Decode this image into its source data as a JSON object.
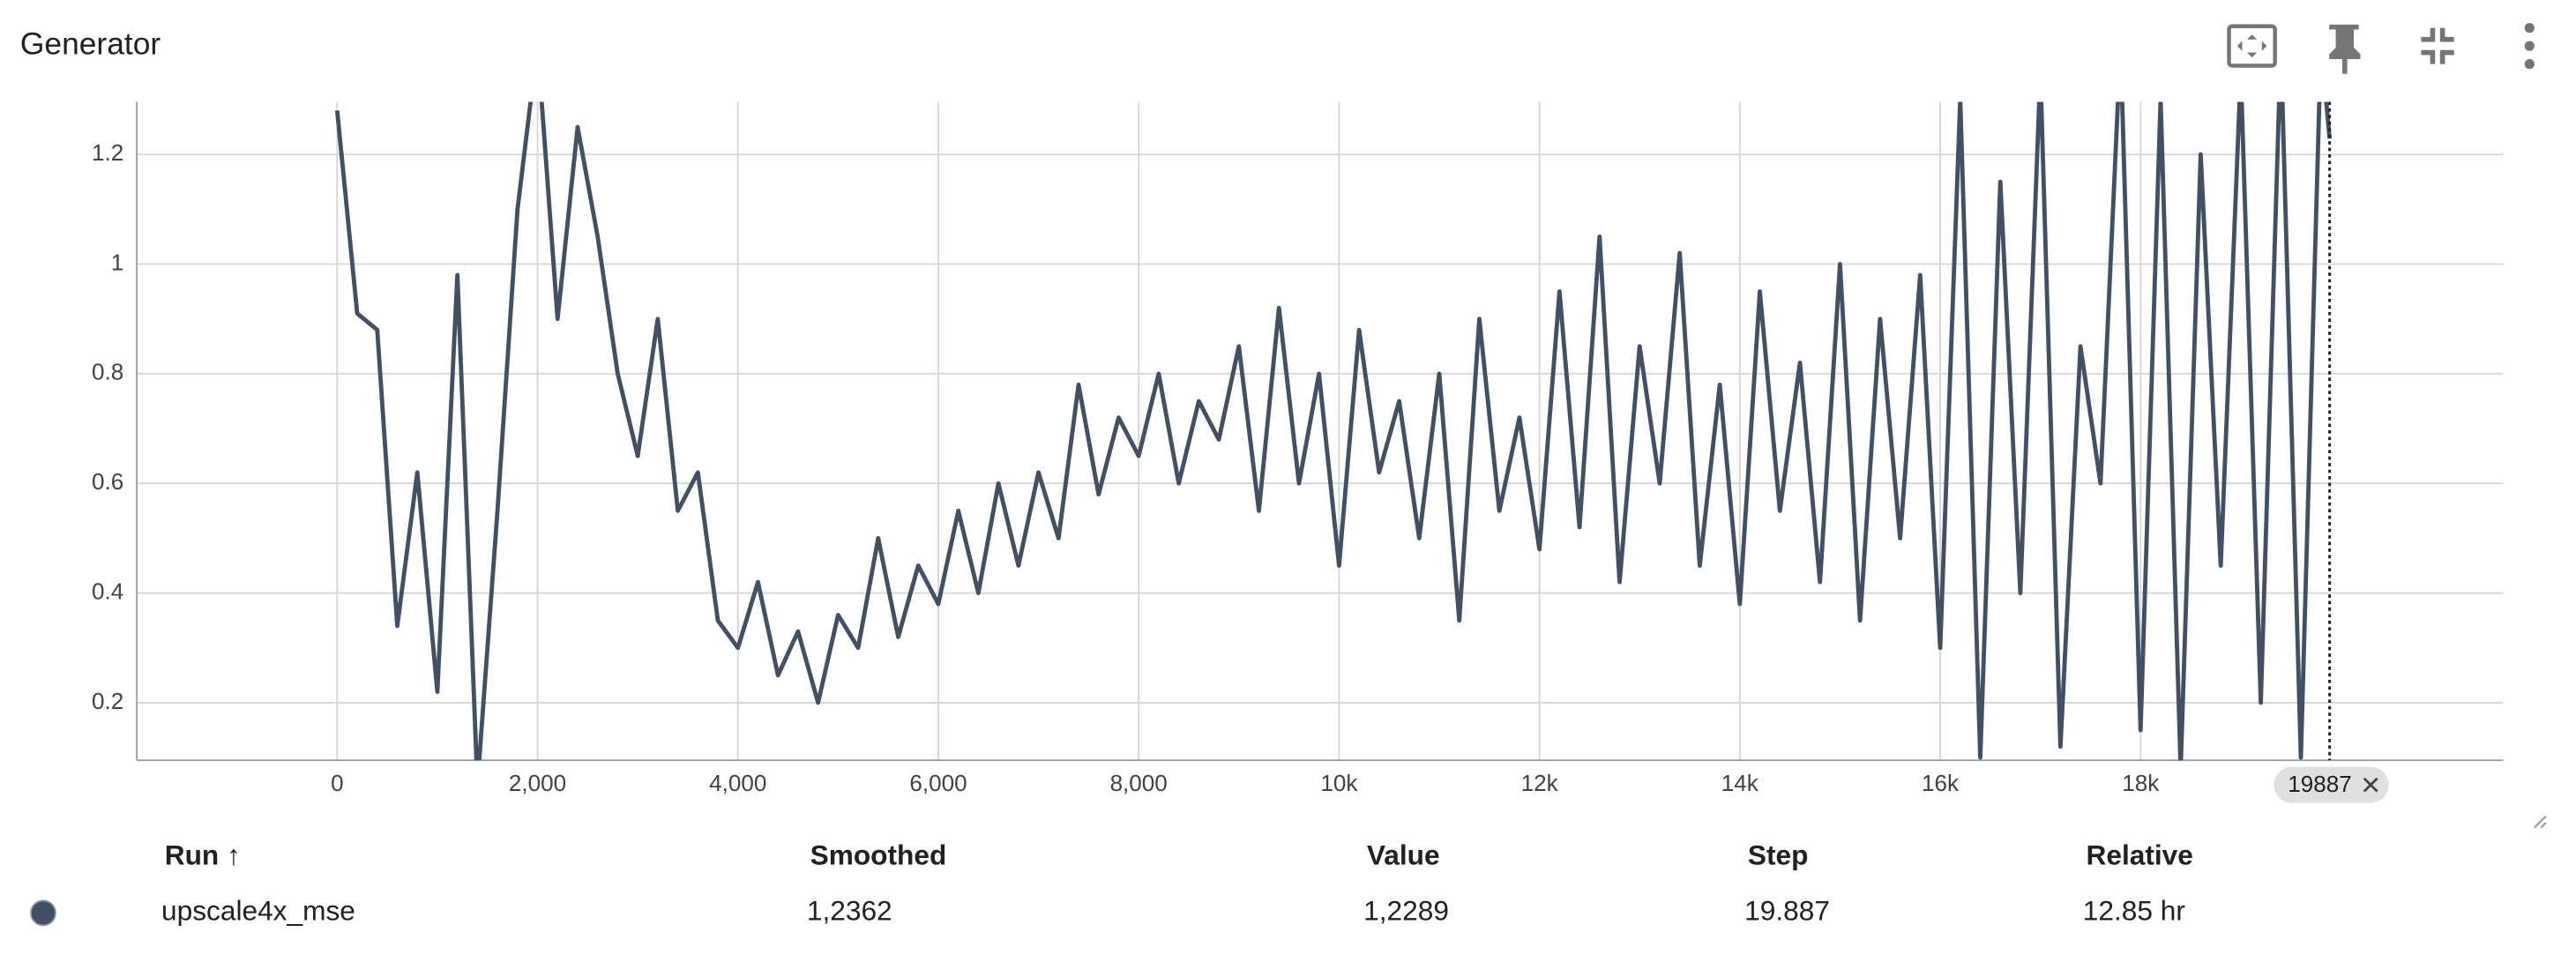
{
  "chart_data": {
    "type": "line",
    "title": "Generator",
    "x": [
      0,
      200,
      400,
      600,
      800,
      1000,
      1200,
      1400,
      1600,
      1800,
      2000,
      2200,
      2400,
      2600,
      2800,
      3000,
      3200,
      3400,
      3600,
      3800,
      4000,
      4200,
      4400,
      4600,
      4800,
      5000,
      5200,
      5400,
      5600,
      5800,
      6000,
      6200,
      6400,
      6600,
      6800,
      7000,
      7200,
      7400,
      7600,
      7800,
      8000,
      8200,
      8400,
      8600,
      8800,
      9000,
      9200,
      9400,
      9600,
      9800,
      10000,
      10200,
      10400,
      10600,
      10800,
      11000,
      11200,
      11400,
      11600,
      11800,
      12000,
      12200,
      12400,
      12600,
      12800,
      13000,
      13200,
      13400,
      13600,
      13800,
      14000,
      14200,
      14400,
      14600,
      14800,
      15000,
      15200,
      15400,
      15600,
      15800,
      16000,
      16200,
      16400,
      16600,
      16800,
      17000,
      17200,
      17400,
      17600,
      17800,
      18000,
      18200,
      18400,
      18600,
      18800,
      19000,
      19200,
      19400,
      19600,
      19800,
      19887
    ],
    "series": [
      {
        "name": "upscale4x_mse",
        "color": "#425066",
        "values": [
          1.28,
          0.91,
          0.88,
          0.34,
          0.62,
          0.22,
          0.98,
          0.05,
          0.55,
          1.1,
          1.4,
          0.9,
          1.25,
          1.05,
          0.8,
          0.65,
          0.9,
          0.55,
          0.62,
          0.35,
          0.3,
          0.42,
          0.25,
          0.33,
          0.2,
          0.36,
          0.3,
          0.5,
          0.32,
          0.45,
          0.38,
          0.55,
          0.4,
          0.6,
          0.45,
          0.62,
          0.5,
          0.78,
          0.58,
          0.72,
          0.65,
          0.8,
          0.6,
          0.75,
          0.68,
          0.85,
          0.55,
          0.92,
          0.6,
          0.8,
          0.45,
          0.88,
          0.62,
          0.75,
          0.5,
          0.8,
          0.35,
          0.9,
          0.55,
          0.72,
          0.48,
          0.95,
          0.52,
          1.05,
          0.42,
          0.85,
          0.6,
          1.02,
          0.45,
          0.78,
          0.38,
          0.95,
          0.55,
          0.82,
          0.42,
          1.0,
          0.35,
          0.9,
          0.5,
          0.98,
          0.3,
          1.3,
          0.1,
          1.15,
          0.4,
          1.35,
          0.12,
          0.85,
          0.6,
          1.4,
          0.15,
          1.3,
          0.08,
          1.2,
          0.45,
          1.35,
          0.2,
          1.4,
          0.1,
          1.4,
          1.2289
        ]
      }
    ],
    "xlim": [
      -2000,
      21620
    ],
    "ylim": [
      0.095,
      1.296
    ],
    "xticks": [
      0,
      {
        "value": 2000,
        "label": "2,000"
      },
      {
        "value": 4000,
        "label": "4,000"
      },
      {
        "value": 6000,
        "label": "6,000"
      },
      {
        "value": 8000,
        "label": "8,000"
      },
      {
        "value": 10000,
        "label": "10k"
      },
      {
        "value": 12000,
        "label": "12k"
      },
      {
        "value": 14000,
        "label": "14k"
      },
      {
        "value": 16000,
        "label": "16k"
      },
      {
        "value": 18000,
        "label": "18k"
      }
    ],
    "yticks": [
      0.2,
      0.4,
      0.6,
      0.8,
      1,
      1.2
    ],
    "grid": true,
    "step_marker": 19887
  },
  "table": {
    "columns": [
      "Run ↑",
      "Smoothed",
      "Value",
      "Step",
      "Relative"
    ],
    "rows": [
      [
        "upscale4x_mse",
        "1,2362",
        "1,2289",
        "19.887",
        "12.85 hr"
      ]
    ]
  }
}
